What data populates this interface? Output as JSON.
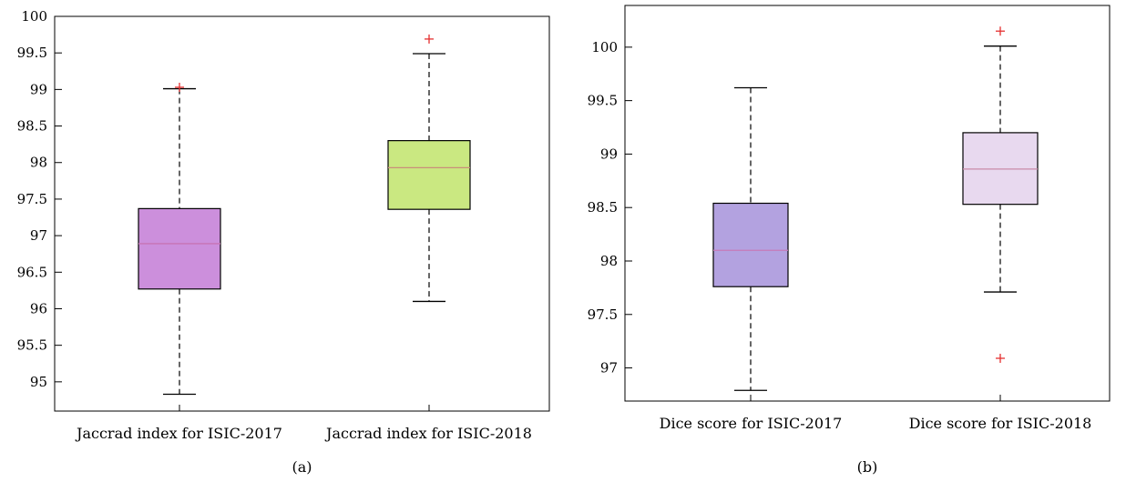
{
  "chart_data": [
    {
      "type": "box",
      "panel_label": "(a)",
      "categories": [
        "Jaccrad index for ISIC-2017",
        "Jaccrad index for ISIC-2018"
      ],
      "ylim": [
        94.6,
        100
      ],
      "yticks": [
        95,
        95.5,
        96,
        96.5,
        97,
        97.5,
        98,
        98.5,
        99,
        99.5,
        100
      ],
      "ytick_labels": [
        "95",
        "95.5",
        "96",
        "96.5",
        "97",
        "97.5",
        "98",
        "98.5",
        "99",
        "99.5",
        "100"
      ],
      "boxes": [
        {
          "whisker_low": 94.83,
          "q1": 96.27,
          "median": 96.89,
          "q3": 97.37,
          "whisker_high": 99.01,
          "outliers": [
            99.03
          ],
          "fill": "#cc8fdc",
          "median_color": "#c774b4"
        },
        {
          "whisker_low": 96.1,
          "q1": 97.36,
          "median": 97.93,
          "q3": 98.3,
          "whisker_high": 99.49,
          "outliers": [
            99.69
          ],
          "fill": "#cae881",
          "median_color": "#c98f7a"
        }
      ],
      "outlier_color": "#e53030"
    },
    {
      "type": "box",
      "panel_label": "(b)",
      "categories": [
        "Dice score for ISIC-2017",
        "Dice score for ISIC-2018"
      ],
      "ylim": [
        96.69,
        100.39
      ],
      "yticks": [
        97,
        97.5,
        98,
        98.5,
        99,
        99.5,
        100
      ],
      "ytick_labels": [
        "97",
        "97.5",
        "98",
        "98.5",
        "99",
        "99.5",
        "100"
      ],
      "boxes": [
        {
          "whisker_low": 96.79,
          "q1": 97.76,
          "median": 98.1,
          "q3": 98.54,
          "whisker_high": 99.62,
          "outliers": [],
          "fill": "#b3a2e0",
          "median_color": "#c67ab8"
        },
        {
          "whisker_low": 97.71,
          "q1": 98.53,
          "median": 98.86,
          "q3": 99.2,
          "whisker_high": 100.01,
          "outliers": [
            97.09,
            100.15
          ],
          "fill": "#e8d9ef",
          "median_color": "#c98aa8"
        }
      ],
      "outlier_color": "#e53030"
    }
  ]
}
